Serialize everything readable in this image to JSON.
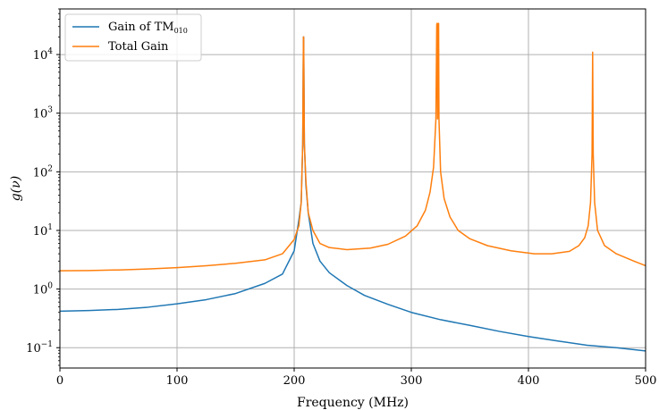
{
  "chart_data": {
    "type": "line",
    "xlabel": "Frequency (MHz)",
    "ylabel": "g(ν)",
    "xlim": [
      0,
      500
    ],
    "ylim": [
      0.045,
      60000
    ],
    "yscale": "log",
    "grid": true,
    "legend_position": "top-left",
    "x_ticks": [
      "0",
      "100",
      "200",
      "300",
      "400",
      "500"
    ],
    "y_ticks": [
      {
        "base": "10",
        "exp": "−1"
      },
      {
        "base": "10",
        "exp": "0"
      },
      {
        "base": "10",
        "exp": "1"
      },
      {
        "base": "10",
        "exp": "2"
      },
      {
        "base": "10",
        "exp": "3"
      },
      {
        "base": "10",
        "exp": "4"
      }
    ],
    "series": [
      {
        "name": "Gain of TM",
        "name_subscript": "010",
        "color": "#1f77b4",
        "x": [
          0,
          25,
          50,
          75,
          100,
          125,
          150,
          175,
          190,
          200,
          204,
          206,
          207.3,
          207.9,
          208.1,
          208.7,
          210,
          212,
          216,
          222,
          230,
          245,
          260,
          280,
          300,
          325,
          350,
          375,
          400,
          425,
          450,
          475,
          500
        ],
        "y": [
          0.42,
          0.43,
          0.45,
          0.49,
          0.56,
          0.66,
          0.84,
          1.25,
          1.8,
          4.5,
          15,
          30,
          300,
          20000,
          20000,
          300,
          60,
          20,
          6,
          3.0,
          1.9,
          1.15,
          0.78,
          0.55,
          0.4,
          0.3,
          0.24,
          0.19,
          0.155,
          0.13,
          0.11,
          0.1,
          0.088
        ]
      },
      {
        "name": "Total Gain",
        "color": "#ff7f0e",
        "x": [
          0,
          25,
          50,
          75,
          100,
          125,
          150,
          175,
          190,
          200,
          204,
          206,
          207.3,
          207.9,
          208.1,
          208.7,
          210,
          212,
          216,
          222,
          230,
          245,
          265,
          280,
          295,
          305,
          312,
          316,
          319,
          321,
          321.7,
          322,
          322.4,
          323,
          323.3,
          323.6,
          325,
          328,
          333,
          340,
          350,
          365,
          385,
          405,
          420,
          435,
          443,
          448,
          451,
          453,
          454.3,
          454.8,
          455.3,
          456.5,
          459,
          465,
          475,
          490,
          500
        ],
        "y": [
          2.05,
          2.07,
          2.12,
          2.2,
          2.32,
          2.5,
          2.75,
          3.15,
          4.0,
          7.0,
          12,
          30,
          300,
          20000,
          20000,
          300,
          70,
          20,
          10,
          6.0,
          5.1,
          4.7,
          5.0,
          5.8,
          8.0,
          12,
          22,
          45,
          120,
          800,
          32000,
          34000,
          800,
          34000,
          34000,
          800,
          100,
          35,
          17,
          10,
          7.2,
          5.5,
          4.5,
          4.0,
          4.0,
          4.4,
          5.5,
          7.5,
          12,
          30,
          200,
          11000,
          200,
          30,
          10,
          5.5,
          4.0,
          3.0,
          2.5
        ]
      }
    ]
  }
}
